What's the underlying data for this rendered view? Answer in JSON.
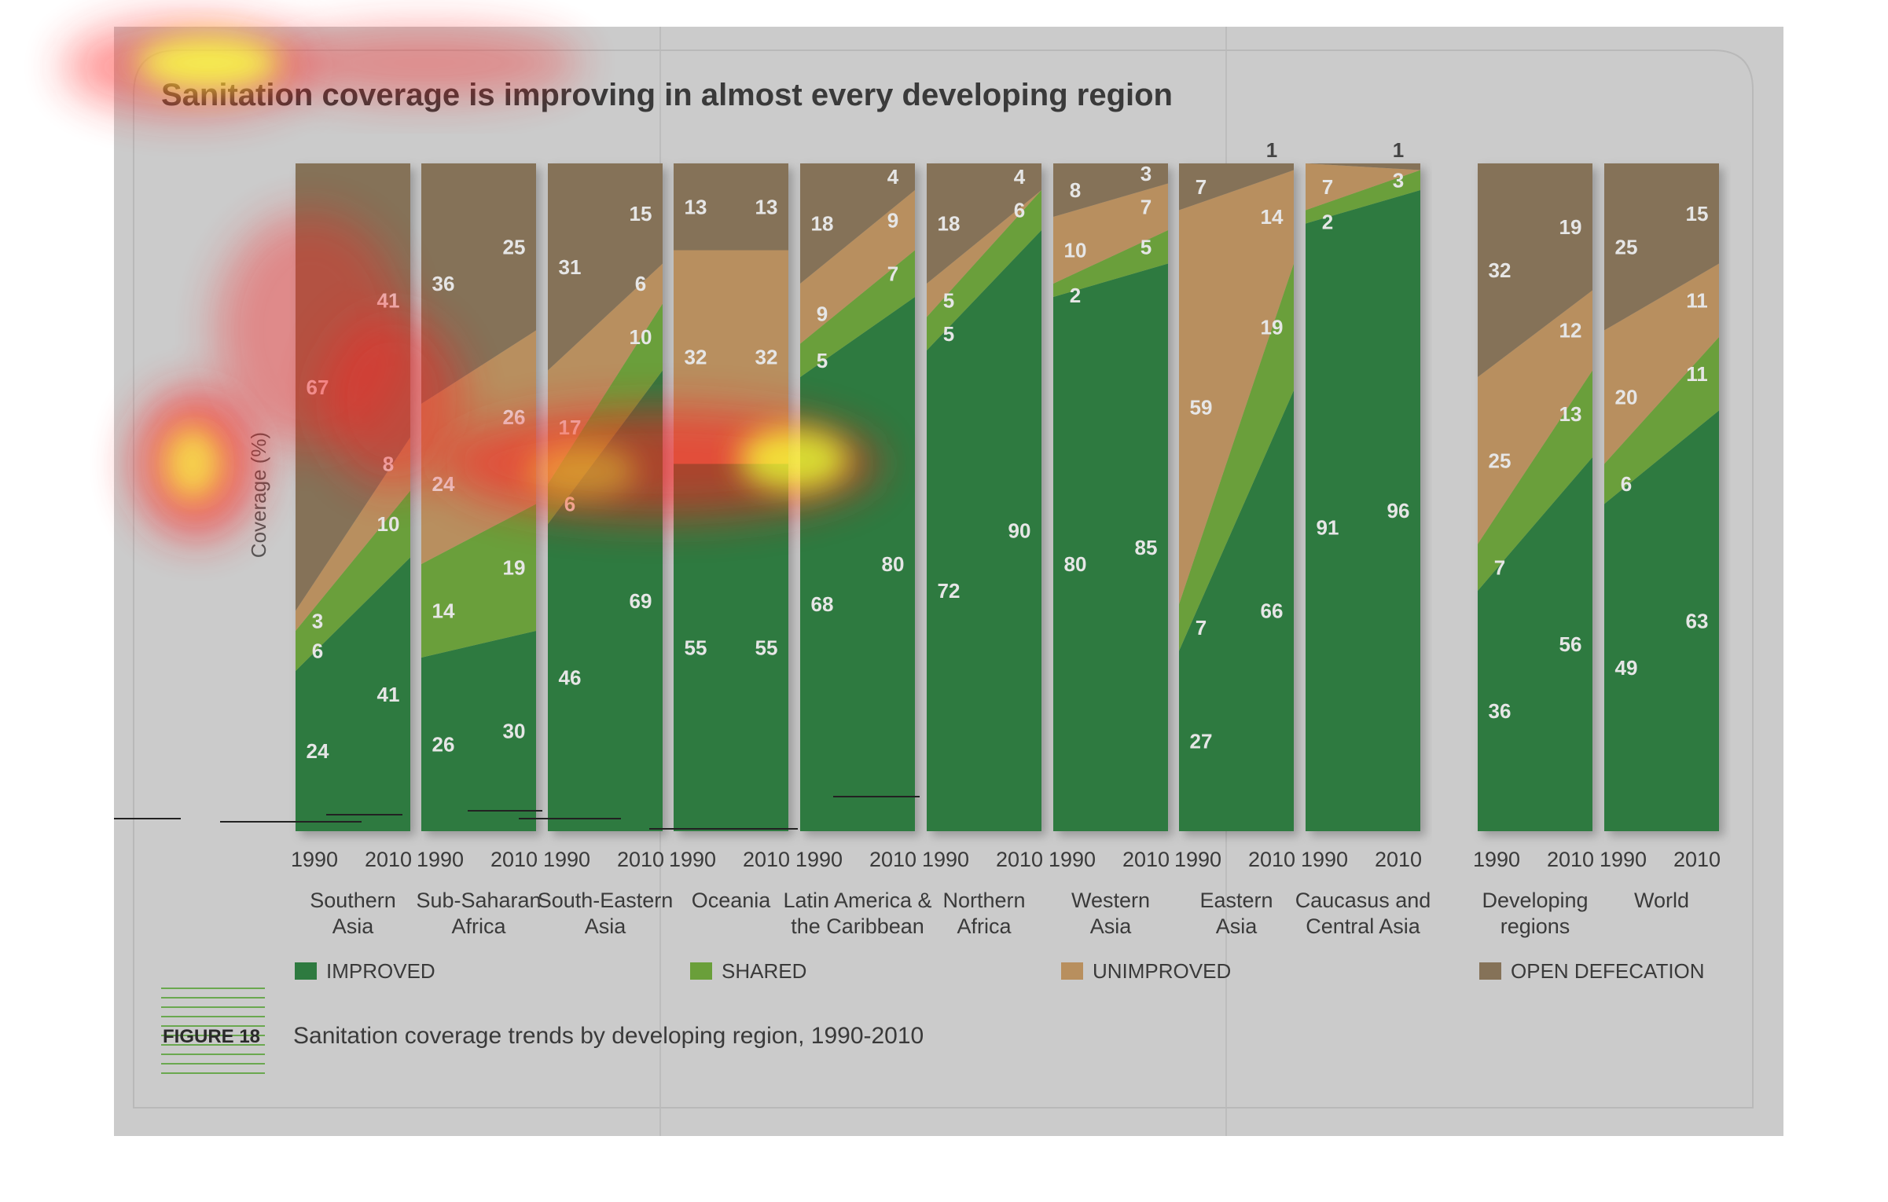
{
  "title": "Sanitation coverage is improving in almost every developing region",
  "figure_label": "FIGURE 18",
  "caption": "Sanitation coverage trends by developing region, 1990-2010",
  "colors": {
    "improved": "#2e7a40",
    "shared": "#6a9f3a",
    "unimproved": "#b88f5e",
    "open_defecation": "#857258",
    "panel": "#cbcbcb",
    "text_on_bar": "#e6e6e6"
  },
  "chart_data": {
    "type": "area",
    "ylabel": "Coverage (%)",
    "ylim": [
      0,
      100
    ],
    "grid": false,
    "legend_position": "bottom",
    "legend": [
      "IMPROVED",
      "SHARED",
      "UNIMPROVED",
      "OPEN DEFECATION"
    ],
    "categories_order": [
      "improved",
      "shared",
      "unimproved",
      "open_defecation"
    ],
    "regions": [
      {
        "label": "Southern\nAsia",
        "years": [
          "1990",
          "2010"
        ],
        "v1990": {
          "improved": 24,
          "shared": 6,
          "unimproved": 3,
          "open_defecation": 67
        },
        "v2010": {
          "improved": 41,
          "shared": 10,
          "unimproved": 8,
          "open_defecation": 41
        }
      },
      {
        "label": "Sub-Saharan\nAfrica",
        "years": [
          "1990",
          "2010"
        ],
        "v1990": {
          "improved": 26,
          "shared": 14,
          "unimproved": 24,
          "open_defecation": 36
        },
        "v2010": {
          "improved": 30,
          "shared": 19,
          "unimproved": 26,
          "open_defecation": 25
        }
      },
      {
        "label": "South-Eastern\nAsia",
        "years": [
          "1990",
          "2010"
        ],
        "v1990": {
          "improved": 46,
          "shared": 6,
          "unimproved": 17,
          "open_defecation": 31
        },
        "v2010": {
          "improved": 69,
          "shared": 10,
          "unimproved": 6,
          "open_defecation": 15
        }
      },
      {
        "label": "Oceania",
        "years": [
          "1990",
          "2010"
        ],
        "v1990": {
          "improved": 55,
          "shared": 0,
          "unimproved": 32,
          "open_defecation": 13
        },
        "v2010": {
          "improved": 55,
          "shared": 0,
          "unimproved": 32,
          "open_defecation": 13
        }
      },
      {
        "label": "Latin America &\nthe Caribbean",
        "years": [
          "1990",
          "2010"
        ],
        "v1990": {
          "improved": 68,
          "shared": 5,
          "unimproved": 9,
          "open_defecation": 18
        },
        "v2010": {
          "improved": 80,
          "shared": 7,
          "unimproved": 9,
          "open_defecation": 4
        }
      },
      {
        "label": "Northern\nAfrica",
        "years": [
          "1990",
          "2010"
        ],
        "v1990": {
          "improved": 72,
          "shared": 5,
          "unimproved": 5,
          "open_defecation": 18
        },
        "v2010": {
          "improved": 90,
          "shared": 6,
          "unimproved": 0,
          "open_defecation": 4
        }
      },
      {
        "label": "Western\nAsia",
        "years": [
          "1990",
          "2010"
        ],
        "v1990": {
          "improved": 80,
          "shared": 2,
          "unimproved": 10,
          "open_defecation": 8
        },
        "v2010": {
          "improved": 85,
          "shared": 5,
          "unimproved": 7,
          "open_defecation": 3
        }
      },
      {
        "label": "Eastern\nAsia",
        "years": [
          "1990",
          "2010"
        ],
        "v1990": {
          "improved": 27,
          "shared": 7,
          "unimproved": 59,
          "open_defecation": 7
        },
        "v2010": {
          "improved": 66,
          "shared": 19,
          "unimproved": 14,
          "open_defecation": 1
        }
      },
      {
        "label": "Caucasus and\nCentral Asia",
        "years": [
          "1990",
          "2010"
        ],
        "v1990": {
          "improved": 91,
          "shared": 2,
          "unimproved": 7,
          "open_defecation": 0
        },
        "v2010": {
          "improved": 96,
          "shared": 3,
          "unimproved": 0,
          "open_defecation": 1
        }
      },
      {
        "label": "Developing\nregions",
        "years": [
          "1990",
          "2010"
        ],
        "v1990": {
          "improved": 36,
          "shared": 7,
          "unimproved": 25,
          "open_defecation": 32
        },
        "v2010": {
          "improved": 56,
          "shared": 13,
          "unimproved": 12,
          "open_defecation": 19
        }
      },
      {
        "label": "World",
        "years": [
          "1990",
          "2010"
        ],
        "v1990": {
          "improved": 49,
          "shared": 6,
          "unimproved": 20,
          "open_defecation": 25
        },
        "v2010": {
          "improved": 63,
          "shared": 11,
          "unimproved": 11,
          "open_defecation": 15
        }
      }
    ]
  },
  "heatmap_overlay": true
}
